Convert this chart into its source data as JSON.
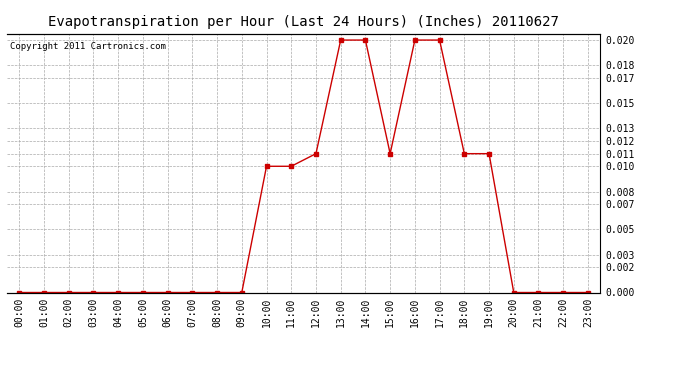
{
  "title": "Evapotranspiration per Hour (Last 24 Hours) (Inches) 20110627",
  "copyright": "Copyright 2011 Cartronics.com",
  "hours": [
    "00:00",
    "01:00",
    "02:00",
    "03:00",
    "04:00",
    "05:00",
    "06:00",
    "07:00",
    "08:00",
    "09:00",
    "10:00",
    "11:00",
    "12:00",
    "13:00",
    "14:00",
    "15:00",
    "16:00",
    "17:00",
    "18:00",
    "19:00",
    "20:00",
    "21:00",
    "22:00",
    "23:00"
  ],
  "values": [
    0.0,
    0.0,
    0.0,
    0.0,
    0.0,
    0.0,
    0.0,
    0.0,
    0.0,
    0.0,
    0.01,
    0.01,
    0.011,
    0.02,
    0.02,
    0.011,
    0.02,
    0.02,
    0.011,
    0.011,
    0.0,
    0.0,
    0.0,
    0.0
  ],
  "line_color": "#cc0000",
  "marker": "s",
  "marker_size": 3,
  "marker_color": "#cc0000",
  "bg_color": "#ffffff",
  "grid_color": "#aaaaaa",
  "ylim": [
    0.0,
    0.0205
  ],
  "yticks": [
    0.0,
    0.002,
    0.003,
    0.005,
    0.007,
    0.008,
    0.01,
    0.011,
    0.012,
    0.013,
    0.015,
    0.017,
    0.018,
    0.02
  ],
  "title_fontsize": 10,
  "copyright_fontsize": 6.5,
  "tick_fontsize": 7
}
